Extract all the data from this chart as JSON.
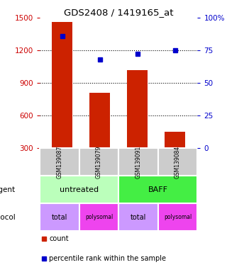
{
  "title": "GDS2408 / 1419165_at",
  "samples": [
    "GSM139087",
    "GSM139079",
    "GSM139091",
    "GSM139084"
  ],
  "bar_values": [
    1460,
    810,
    1020,
    450
  ],
  "percentile_values": [
    86,
    68,
    72,
    75
  ],
  "bar_color": "#cc2200",
  "dot_color": "#0000cc",
  "ylim_left": [
    300,
    1500
  ],
  "ylim_right": [
    0,
    100
  ],
  "yticks_left": [
    300,
    600,
    900,
    1200,
    1500
  ],
  "yticks_right": [
    0,
    25,
    50,
    75,
    100
  ],
  "ytick_labels_right": [
    "0",
    "25",
    "50",
    "75",
    "100%"
  ],
  "gridline_values": [
    600,
    900,
    1200
  ],
  "agent_labels": [
    "untreated",
    "BAFF"
  ],
  "agent_color_untreated": "#bbffbb",
  "agent_color_baff": "#44ee44",
  "protocol_labels": [
    "total",
    "polysomal",
    "total",
    "polysomal"
  ],
  "protocol_color_total": "#cc99ff",
  "protocol_color_poly": "#ee44ee",
  "sample_bg_color": "#cccccc",
  "left_label_color": "#cc0000",
  "right_label_color": "#0000cc",
  "legend_count_color": "#cc2200",
  "legend_pct_color": "#0000cc",
  "bar_bottom": 300
}
